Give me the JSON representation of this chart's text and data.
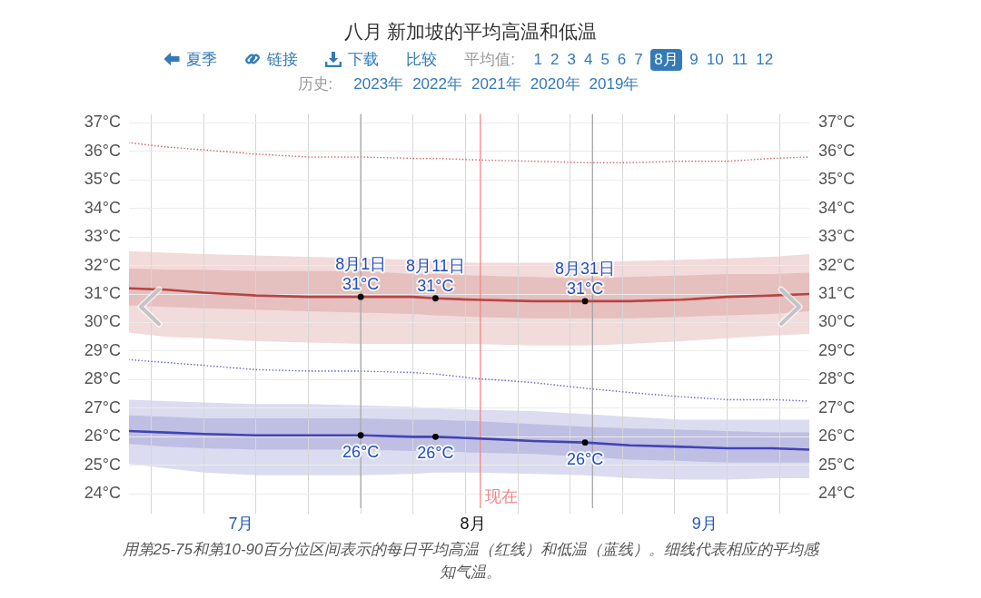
{
  "chart_data": {
    "type": "line",
    "title": "八月 新加坡的平均高温和低温",
    "subtitle": "夏季 链接 下载 比较 平均值: 1 2 3 4 5 6 7 8月 9 10 11 12",
    "x": [
      "--07-01",
      "--07-06",
      "--07-11",
      "--07-18",
      "--07-25",
      "--08-01",
      "--08-08",
      "--08-11",
      "--08-16",
      "--08-24",
      "--08-31",
      "--09-06",
      "--09-13",
      "--09-19",
      "--09-25",
      "--09-30"
    ],
    "xlim": [
      "--07-01",
      "--09-30"
    ],
    "xticks": [
      {
        "value": "--07-04",
        "label": null
      },
      {
        "value": "--07-11",
        "label": null
      },
      {
        "value": "--07-16",
        "label": "7月"
      },
      {
        "value": "--07-18",
        "label": null
      },
      {
        "value": "--07-25",
        "label": null
      },
      {
        "value": "--08-01",
        "label": null
      },
      {
        "value": "--08-08",
        "label": null
      },
      {
        "value": "--08-15",
        "label": null
      },
      {
        "value": "--08-16",
        "label": "8月"
      },
      {
        "value": "--08-22",
        "label": null
      },
      {
        "value": "--08-29",
        "label": null
      },
      {
        "value": "--09-05",
        "label": null
      },
      {
        "value": "--09-12",
        "label": null
      },
      {
        "value": "--09-16",
        "label": "9月"
      },
      {
        "value": "--09-19",
        "label": null
      },
      {
        "value": "--09-26",
        "label": null
      }
    ],
    "ylim": [
      23.5,
      37.3
    ],
    "yticks": [
      {
        "value": 24,
        "label": "24°C"
      },
      {
        "value": 25,
        "label": "25°C"
      },
      {
        "value": 26,
        "label": "26°C"
      },
      {
        "value": 27,
        "label": "27°C"
      },
      {
        "value": 28,
        "label": "28°C"
      },
      {
        "value": 29,
        "label": "29°C"
      },
      {
        "value": 30,
        "label": "30°C"
      },
      {
        "value": 31,
        "label": "31°C"
      },
      {
        "value": 32,
        "label": "32°C"
      },
      {
        "value": 33,
        "label": "33°C"
      },
      {
        "value": 34,
        "label": "34°C"
      },
      {
        "value": 35,
        "label": "35°C"
      },
      {
        "value": 36,
        "label": "36°C"
      },
      {
        "value": 37,
        "label": "37°C"
      }
    ],
    "y2lim": [
      23.5,
      37.3
    ],
    "y2ticks": [
      {
        "value": 24,
        "label": "24°C"
      },
      {
        "value": 25,
        "label": "25°C"
      },
      {
        "value": 26,
        "label": "26°C"
      },
      {
        "value": 27,
        "label": "27°C"
      },
      {
        "value": 28,
        "label": "28°C"
      },
      {
        "value": 29,
        "label": "29°C"
      },
      {
        "value": 30,
        "label": "30°C"
      },
      {
        "value": 31,
        "label": "31°C"
      },
      {
        "value": 32,
        "label": "32°C"
      },
      {
        "value": 33,
        "label": "33°C"
      },
      {
        "value": 34,
        "label": "34°C"
      },
      {
        "value": 35,
        "label": "35°C"
      },
      {
        "value": 36,
        "label": "36°C"
      },
      {
        "value": 37,
        "label": "37°C"
      }
    ],
    "grid": true,
    "marker": "none",
    "line_style": "solid",
    "series": [
      {
        "color": "#f2dbdb",
        "values": [
          null,
          null,
          null,
          null,
          null,
          null,
          null,
          null,
          null,
          null,
          null,
          null,
          null,
          null,
          null,
          null
        ],
        "lower": [
          29.65,
          29.5,
          29.45,
          29.35,
          29.3,
          29.25,
          29.25,
          29.25,
          29.25,
          29.2,
          29.2,
          29.25,
          29.35,
          29.45,
          29.55,
          29.6
        ],
        "upper": [
          32.5,
          32.45,
          32.4,
          32.35,
          32.3,
          32.25,
          32.2,
          32.15,
          32.1,
          32.1,
          32.1,
          32.15,
          32.2,
          32.25,
          32.3,
          32.4
        ]
      },
      {
        "color": "#e6bfbf",
        "values": [
          null,
          null,
          null,
          null,
          null,
          null,
          null,
          null,
          null,
          null,
          null,
          null,
          null,
          null,
          null,
          null
        ],
        "lower": [
          30.6,
          30.55,
          30.5,
          30.45,
          30.4,
          30.35,
          30.3,
          30.25,
          30.2,
          30.15,
          30.15,
          30.15,
          30.2,
          30.25,
          30.3,
          30.4
        ],
        "upper": [
          31.9,
          31.85,
          31.85,
          31.8,
          31.8,
          31.8,
          31.7,
          31.7,
          31.65,
          31.6,
          31.55,
          31.6,
          31.65,
          31.7,
          31.7,
          31.75
        ]
      },
      {
        "color": "#dcdcf0",
        "values": [
          null,
          null,
          null,
          null,
          null,
          null,
          null,
          null,
          null,
          null,
          null,
          null,
          null,
          null,
          null,
          null
        ],
        "lower": [
          25.05,
          24.9,
          24.75,
          24.65,
          24.65,
          24.65,
          24.7,
          24.75,
          24.75,
          24.7,
          24.65,
          24.55,
          24.5,
          24.5,
          24.55,
          24.55
        ],
        "upper": [
          27.3,
          27.25,
          27.2,
          27.15,
          27.15,
          27.1,
          27.05,
          27.0,
          26.95,
          26.9,
          26.8,
          26.7,
          26.6,
          26.6,
          26.6,
          26.6
        ]
      },
      {
        "color": "#bfbfe4",
        "values": [
          null,
          null,
          null,
          null,
          null,
          null,
          null,
          null,
          null,
          null,
          null,
          null,
          null,
          null,
          null,
          null
        ],
        "lower": [
          25.75,
          25.65,
          25.6,
          25.55,
          25.55,
          25.55,
          25.5,
          25.5,
          25.45,
          25.4,
          25.3,
          25.2,
          25.15,
          25.1,
          25.1,
          25.1
        ],
        "upper": [
          26.75,
          26.7,
          26.65,
          26.65,
          26.65,
          26.65,
          26.6,
          26.6,
          26.55,
          26.45,
          26.35,
          26.3,
          26.25,
          26.2,
          26.15,
          26.15
        ]
      },
      {
        "color": "#d46a6a",
        "line_style": "dotted",
        "values": [
          36.3,
          36.15,
          36.05,
          35.9,
          35.8,
          35.8,
          35.75,
          35.75,
          35.7,
          35.65,
          35.6,
          35.6,
          35.65,
          35.65,
          35.75,
          35.8
        ]
      },
      {
        "color": "#6b6bd0",
        "line_style": "dotted",
        "values": [
          28.7,
          28.6,
          28.5,
          28.35,
          28.3,
          28.3,
          28.25,
          28.2,
          28.05,
          27.9,
          27.7,
          27.55,
          27.4,
          27.3,
          27.3,
          27.25
        ]
      },
      {
        "color": "#b84444",
        "values": [
          31.2,
          31.15,
          31.05,
          30.95,
          30.9,
          30.9,
          30.9,
          30.85,
          30.8,
          30.75,
          30.75,
          30.75,
          30.8,
          30.9,
          30.95,
          31.0
        ]
      },
      {
        "color": "#4343b5",
        "values": [
          26.2,
          26.15,
          26.1,
          26.05,
          26.05,
          26.05,
          26.0,
          26.0,
          25.95,
          25.85,
          25.8,
          25.7,
          25.65,
          25.6,
          25.6,
          25.55
        ]
      },
      {
        "type": "scatter",
        "marker": "circle",
        "color": "#000000",
        "x": [
          "--08-01",
          "--08-11",
          "--08-31"
        ],
        "values": [
          30.9,
          30.85,
          30.75
        ]
      },
      {
        "type": "scatter",
        "marker": "circle",
        "color": "#000000",
        "x": [
          "--08-01",
          "--08-11",
          "--08-31"
        ],
        "values": [
          26.05,
          26.0,
          25.8
        ]
      }
    ],
    "ref_lines": [
      {
        "axis": "x",
        "value": "--08-01",
        "color": "#a6a6a6"
      },
      {
        "axis": "x",
        "value": "--09-01",
        "color": "#a6a6a6"
      },
      {
        "axis": "x",
        "value": "--08-17",
        "label": "现在",
        "color": "#f28686"
      }
    ],
    "annotations": [
      "历史: 2023年 2022年 2021年 2020年 2019年",
      "用第25-75和第10-90百分位区间表示的每日平均高温（红线）和低温（蓝线）。细线代表相应的平均感知气温。",
      {
        "text": "8月1日\n31°C",
        "x": "--08-01",
        "y": 30.9
      },
      {
        "text": "8月11日\n31°C",
        "x": "--08-11",
        "y": 30.85
      },
      {
        "text": "8月31日\n31°C",
        "x": "--08-31",
        "y": 30.75
      },
      {
        "text": "26°C",
        "x": "--08-01",
        "y": 26.05
      },
      {
        "text": "26°C",
        "x": "--08-11",
        "y": 26.0
      },
      {
        "text": "26°C",
        "x": "--08-31",
        "y": 25.8
      }
    ]
  }
}
